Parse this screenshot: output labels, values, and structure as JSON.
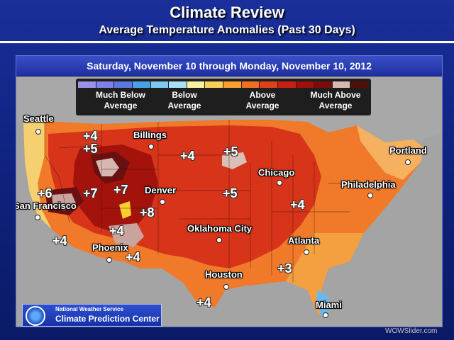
{
  "header": {
    "title": "Climate Review",
    "subtitle": "Average Temperature Anomalies (Past 30 Days)"
  },
  "map": {
    "date_range": "Saturday, November 10 through Monday, November 10, 2012",
    "legend": {
      "colors": [
        "#9a92e8",
        "#7c82e6",
        "#5a78e0",
        "#4aa0e8",
        "#7cc8f0",
        "#a8e0f8",
        "#f8f0a0",
        "#f8d058",
        "#f8a030",
        "#f07020",
        "#e04018",
        "#c82010",
        "#a01008",
        "#7a0c0c",
        "#d8b8b0",
        "#501008"
      ],
      "labels": [
        "Much Below\nAverage",
        "Below\nAverage",
        "Above\nAverage",
        "Much Above\nAverage"
      ]
    },
    "cities": [
      {
        "name": "Seattle"
      },
      {
        "name": "Billings"
      },
      {
        "name": "Portland"
      },
      {
        "name": "Chicago"
      },
      {
        "name": "Philadelphia"
      },
      {
        "name": "San Francisco"
      },
      {
        "name": "Denver"
      },
      {
        "name": "Oklahoma City"
      },
      {
        "name": "Atlanta"
      },
      {
        "name": "Phoenix"
      },
      {
        "name": "Houston"
      },
      {
        "name": "Miami"
      }
    ],
    "anomalies": [
      "+4",
      "+5",
      "+4",
      "+5",
      "+6",
      "+7",
      "+7",
      "+8",
      "+5",
      "+4",
      "+4",
      "+4",
      "+4",
      "+3",
      "+4"
    ]
  },
  "footer": {
    "agency": "National Weather Service",
    "center": "Climate Prediction Center",
    "watermark": "WOWSlider.com"
  }
}
